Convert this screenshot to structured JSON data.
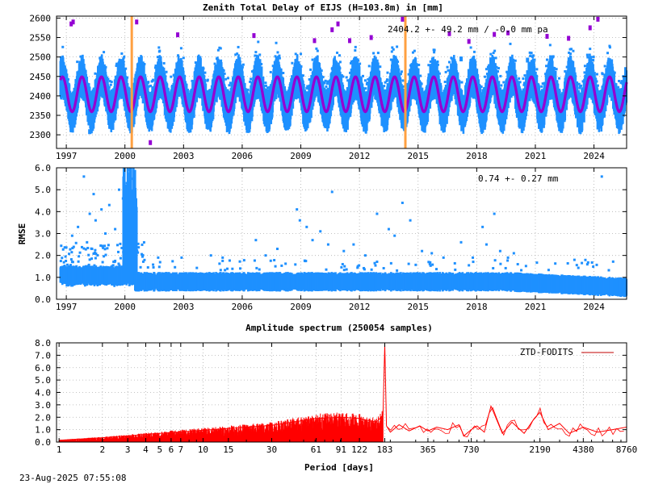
{
  "footer": {
    "timestamp": "23-Aug-2025 07:55:08"
  },
  "colors": {
    "blue": "#1e90ff",
    "purple": "#9400d3",
    "orange": "#ffa040",
    "red": "#ff0000",
    "legend_line": "#c00000"
  },
  "chart_data": [
    {
      "type": "scatter",
      "title": "Zenith Total Delay of EIJS (H=103.8m) in [mm]",
      "annotation": "2404.2 +-  49.2 mm / -0.0 mm pa",
      "xlabel": "",
      "ylabel": "",
      "xlim": [
        1996.5,
        2025.67
      ],
      "ylim": [
        2265,
        2605
      ],
      "x_ticks": [
        1997,
        2000,
        2003,
        2006,
        2009,
        2012,
        2015,
        2018,
        2021,
        2024
      ],
      "y_ticks": [
        2300,
        2350,
        2400,
        2450,
        2500,
        2550,
        2600
      ],
      "grid": true,
      "series": [
        {
          "kind": "observations",
          "color": "blue",
          "mean": 2404.2,
          "amplitude": 45,
          "spread": 45,
          "x_range": [
            1996.7,
            2025.67
          ]
        },
        {
          "kind": "seasonal-model",
          "color": "purple",
          "mean": 2404.2,
          "amplitude": 45,
          "x_range": [
            1996.7,
            2025.67
          ]
        }
      ],
      "vertical_markers": [
        2000.35,
        2014.35
      ],
      "outliers": [
        [
          1997.25,
          2585
        ],
        [
          1997.35,
          2590
        ],
        [
          2000.6,
          2590
        ],
        [
          2002.7,
          2557
        ],
        [
          2006.6,
          2555
        ],
        [
          2009.7,
          2542
        ],
        [
          2010.6,
          2570
        ],
        [
          2010.9,
          2585
        ],
        [
          2011.5,
          2542
        ],
        [
          2012.6,
          2550
        ],
        [
          2014.2,
          2597
        ],
        [
          2016.6,
          2560
        ],
        [
          2017.2,
          2495
        ],
        [
          2017.6,
          2540
        ],
        [
          2018.9,
          2558
        ],
        [
          2019.6,
          2562
        ],
        [
          2021.6,
          2553
        ],
        [
          2022.7,
          2548
        ],
        [
          2023.8,
          2575
        ],
        [
          2024.2,
          2597
        ],
        [
          2011.8,
          2495
        ],
        [
          2020.6,
          2492
        ],
        [
          1998.2,
          2308
        ],
        [
          2001.3,
          2280
        ]
      ]
    },
    {
      "type": "scatter",
      "title": "",
      "annotation": "0.74 +-  0.27 mm",
      "xlabel": "",
      "ylabel": "RMSE",
      "xlim": [
        1996.5,
        2025.67
      ],
      "ylim": [
        0,
        6
      ],
      "x_ticks": [
        1997,
        2000,
        2003,
        2006,
        2009,
        2012,
        2015,
        2018,
        2021,
        2024
      ],
      "y_ticks": [
        0.0,
        1.0,
        2.0,
        3.0,
        4.0,
        5.0,
        6.0
      ],
      "grid": true,
      "series": [
        {
          "kind": "observations",
          "color": "blue",
          "mean": 0.74,
          "std": 0.27
        }
      ],
      "outliers": [
        [
          1997.3,
          2.9
        ],
        [
          1997.6,
          3.3
        ],
        [
          1997.9,
          5.6
        ],
        [
          1998.2,
          3.9
        ],
        [
          1998.4,
          4.8
        ],
        [
          1998.5,
          3.6
        ],
        [
          1998.8,
          4.1
        ],
        [
          1999.0,
          3.0
        ],
        [
          1999.2,
          4.3
        ],
        [
          1999.5,
          3.2
        ],
        [
          1999.7,
          5.0
        ],
        [
          1999.9,
          4.6
        ],
        [
          2000.1,
          5.3
        ],
        [
          2000.25,
          5.9
        ],
        [
          2000.35,
          5.5
        ],
        [
          2000.2,
          4.4
        ],
        [
          2001.7,
          1.9
        ],
        [
          2002.9,
          1.9
        ],
        [
          2004.4,
          2.0
        ],
        [
          2005.0,
          1.9
        ],
        [
          2006.7,
          2.7
        ],
        [
          2007.2,
          2.0
        ],
        [
          2007.8,
          2.3
        ],
        [
          2008.8,
          4.1
        ],
        [
          2008.95,
          3.6
        ],
        [
          2009.3,
          3.3
        ],
        [
          2009.6,
          2.7
        ],
        [
          2010.0,
          3.1
        ],
        [
          2010.4,
          2.5
        ],
        [
          2010.6,
          4.9
        ],
        [
          2011.2,
          2.2
        ],
        [
          2011.7,
          2.5
        ],
        [
          2012.3,
          2.0
        ],
        [
          2012.9,
          3.9
        ],
        [
          2013.5,
          3.2
        ],
        [
          2013.8,
          2.9
        ],
        [
          2014.2,
          4.4
        ],
        [
          2014.6,
          3.6
        ],
        [
          2015.2,
          2.2
        ],
        [
          2015.7,
          2.1
        ],
        [
          2016.3,
          1.9
        ],
        [
          2017.2,
          2.6
        ],
        [
          2017.8,
          1.9
        ],
        [
          2018.3,
          3.3
        ],
        [
          2018.5,
          2.5
        ],
        [
          2018.9,
          3.9
        ],
        [
          2019.2,
          2.2
        ],
        [
          2019.6,
          1.9
        ],
        [
          2019.9,
          2.1
        ],
        [
          2020.1,
          1.6
        ],
        [
          2024.4,
          5.6
        ]
      ]
    },
    {
      "type": "line",
      "title": "Amplitude spectrum (250054 samples)",
      "xlabel": "Period [days]",
      "ylabel": "",
      "xscale": "log",
      "xlim": [
        0.96,
        8760
      ],
      "ylim": [
        0,
        8
      ],
      "x_ticks": [
        1,
        2,
        3,
        4,
        5,
        6,
        7,
        10,
        15,
        30,
        61,
        91,
        122,
        183,
        365,
        730,
        2190,
        4380,
        8760
      ],
      "y_ticks": [
        0.0,
        1.0,
        2.0,
        3.0,
        4.0,
        5.0,
        6.0,
        7.0,
        8.0
      ],
      "grid": true,
      "legend": "top-right",
      "series": [
        {
          "name": "ZTD-FODITS",
          "color": "red",
          "x": [
            1,
            2,
            3,
            5,
            10,
            30,
            61,
            91,
            122,
            160,
            178,
            183,
            188,
            200,
            230,
            270,
            320,
            365,
            420,
            500,
            600,
            650,
            730,
            800,
            900,
            1000,
            1200,
            1400,
            1700,
            2000,
            2190,
            2500,
            3000,
            3500,
            4380,
            5500,
            7000,
            8760
          ],
          "values": [
            0.15,
            0.35,
            0.5,
            0.7,
            0.95,
            1.35,
            1.9,
            2.0,
            1.9,
            1.6,
            2.2,
            7.9,
            1.3,
            0.8,
            1.4,
            0.9,
            1.3,
            0.9,
            1.2,
            1.0,
            1.4,
            0.5,
            1.0,
            1.3,
            0.8,
            2.9,
            0.7,
            1.6,
            0.7,
            1.9,
            2.4,
            1.0,
            1.5,
            0.7,
            1.2,
            0.8,
            1.0,
            1.2
          ]
        }
      ]
    }
  ]
}
